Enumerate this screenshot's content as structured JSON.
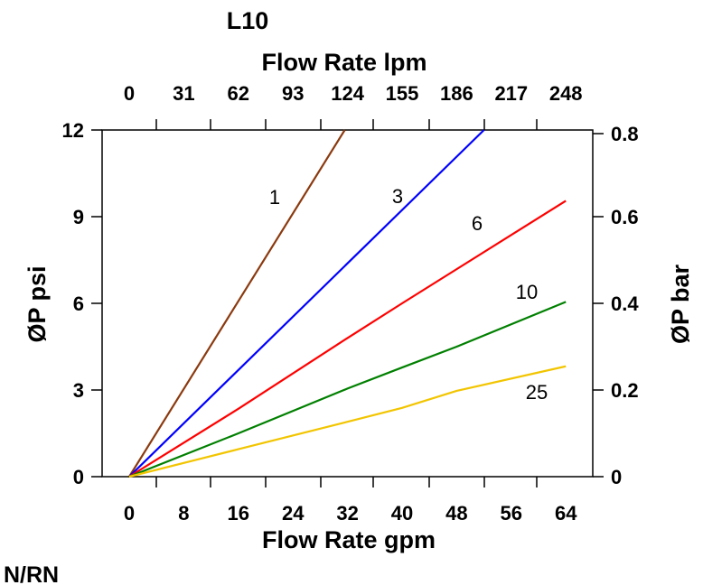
{
  "chart_data": {
    "type": "line",
    "title": "L10",
    "subtitle": "N/RN",
    "xlabel": "Flow Rate gpm",
    "x2label": "Flow Rate lpm",
    "ylabel": "ØP psi",
    "y2label": "ØP bar",
    "xlim": [
      -4.2,
      68
    ],
    "ylim": [
      0,
      12
    ],
    "y2lim": [
      0,
      0.8
    ],
    "xticks": [
      "0",
      "8",
      "16",
      "24",
      "32",
      "40",
      "48",
      "56",
      "64"
    ],
    "x2ticks": [
      "0",
      "31",
      "62",
      "93",
      "124",
      "155",
      "186",
      "217",
      "248"
    ],
    "yticks": [
      "0",
      "3",
      "6",
      "9",
      "12"
    ],
    "y2ticks": [
      "0",
      "0.2",
      "0.4",
      "0.6",
      "0.8"
    ],
    "grid": false,
    "series": [
      {
        "name": "1",
        "color": "#8B3A0F",
        "x": [
          0,
          31.6
        ],
        "y": [
          0,
          12
        ]
      },
      {
        "name": "3",
        "color": "#0000FF",
        "x": [
          0,
          52
        ],
        "y": [
          0,
          12
        ]
      },
      {
        "name": "6",
        "color": "#FF0000",
        "x": [
          0,
          16,
          32,
          40,
          64
        ],
        "y": [
          0,
          2.35,
          4.8,
          6.0,
          9.55
        ]
      },
      {
        "name": "10",
        "color": "#008000",
        "x": [
          0,
          16,
          32,
          40,
          48,
          64
        ],
        "y": [
          0,
          1.5,
          3.05,
          3.78,
          4.5,
          6.05
        ]
      },
      {
        "name": "25",
        "color": "#F2C500",
        "x": [
          0,
          16,
          32,
          40,
          48,
          64
        ],
        "y": [
          0,
          0.95,
          1.9,
          2.38,
          2.97,
          3.82
        ]
      }
    ]
  }
}
